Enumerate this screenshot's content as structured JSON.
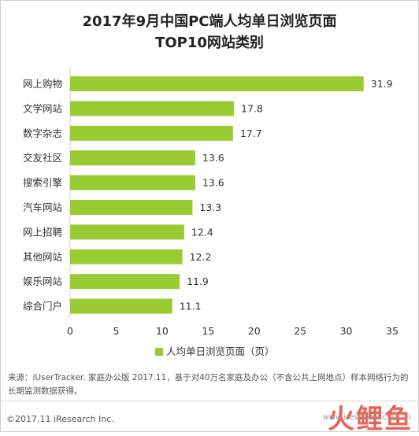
{
  "title_line1": "2017年9月中国PC端人均单日浏览页面",
  "title_line2": "TOP10网站类别",
  "source_text": "来源：iUserTracker. 家庭办公版 2017.11，基于对40万名家庭及办公（不含公共上网地点）样本网络行为的长期监测数据获得。",
  "copyright": "©2017.11 iResearch Inc.",
  "watermark": {
    "glyphs": "火鲤鱼",
    "url": "www.iresearch.com.cn"
  },
  "colors": {
    "bar": "#99cc33",
    "axis": "#d0d0d0",
    "text": "#333333"
  },
  "chart_data": {
    "type": "bar",
    "orientation": "horizontal",
    "categories": [
      "网上购物",
      "文学网站",
      "数字杂志",
      "交友社区",
      "搜索引擎",
      "汽车网站",
      "网上招聘",
      "其他网站",
      "娱乐网站",
      "综合门户"
    ],
    "values": [
      31.9,
      17.8,
      17.7,
      13.6,
      13.6,
      13.3,
      12.4,
      12.2,
      11.9,
      11.1
    ],
    "xlim": [
      0,
      35
    ],
    "xticks": [
      0,
      5,
      10,
      15,
      20,
      25,
      30,
      35
    ],
    "grid": false,
    "legend": {
      "position": "bottom",
      "label": "人均单日浏览页面（页）"
    }
  }
}
